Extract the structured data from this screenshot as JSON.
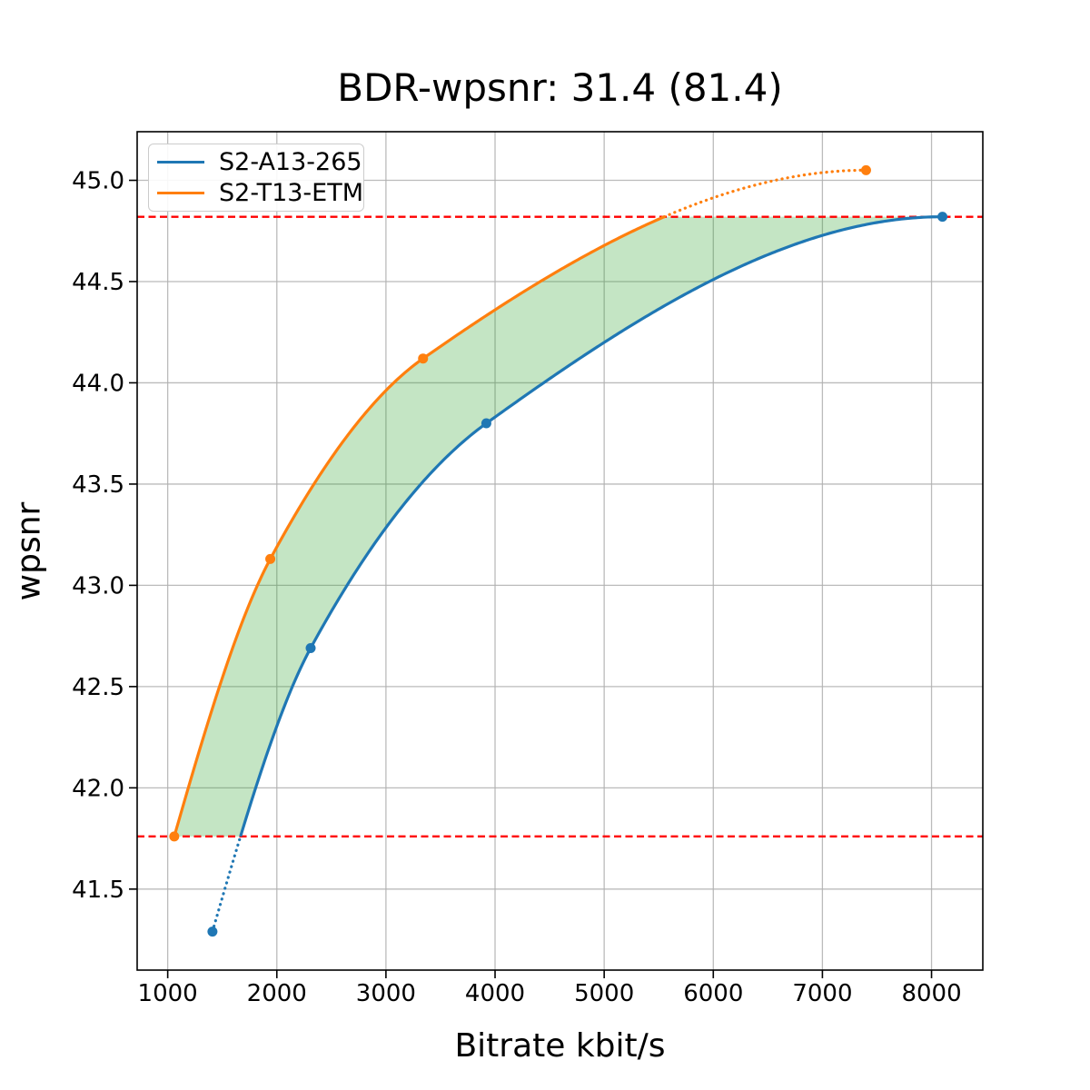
{
  "figure": {
    "title": "BDR-wpsnr: 31.4 (81.4)"
  },
  "chart_data": {
    "type": "line",
    "title": "BDR-wpsnr: 31.4 (81.4)",
    "xlabel": "Bitrate kbit/s",
    "ylabel": "wpsnr",
    "xlim": [
      720,
      8470
    ],
    "ylim": [
      41.1,
      45.24
    ],
    "x_ticks": [
      1000,
      2000,
      3000,
      4000,
      5000,
      6000,
      7000,
      8000
    ],
    "y_ticks": [
      41.5,
      42.0,
      42.5,
      43.0,
      43.5,
      44.0,
      44.5,
      45.0
    ],
    "grid": true,
    "legend": {
      "position": "upper left"
    },
    "series": [
      {
        "name": "S2-A13-265",
        "color": "#1f77b4",
        "points": [
          [
            1410,
            41.29
          ],
          [
            2310,
            42.69
          ],
          [
            3920,
            43.8
          ],
          [
            8100,
            44.82
          ]
        ]
      },
      {
        "name": "S2-T13-ETM",
        "color": "#ff7f0e",
        "points": [
          [
            1060,
            41.76
          ],
          [
            1940,
            43.13
          ],
          [
            3340,
            44.12
          ],
          [
            7400,
            45.05
          ]
        ]
      }
    ],
    "hlines": [
      {
        "y": 44.82,
        "color": "#ff0000",
        "style": "dashed"
      },
      {
        "y": 41.76,
        "color": "#ff0000",
        "style": "dashed"
      }
    ],
    "shaded_region": {
      "between": [
        "S2-T13-ETM",
        "S2-A13-265"
      ],
      "y_min": 41.76,
      "y_max": 44.82,
      "color": "#2ca02c",
      "opacity": 0.28
    },
    "colors": {
      "grid": "#b0b0b0",
      "spine": "#000000",
      "background": "#ffffff"
    }
  }
}
